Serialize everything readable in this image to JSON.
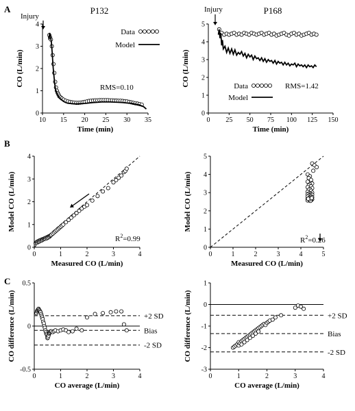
{
  "figure": {
    "panel_letters": [
      "A",
      "B",
      "C"
    ],
    "patients": [
      "P132",
      "P168"
    ]
  },
  "chart_data": [
    {
      "id": "A-left",
      "type": "line",
      "panel_letter": "A",
      "title": "P132",
      "xlabel": "Time (min)",
      "ylabel": "CO (L/min)",
      "xlim": [
        10,
        35
      ],
      "ylim": [
        0,
        4
      ],
      "xticks": [
        10,
        15,
        20,
        25,
        30,
        35
      ],
      "yticks": [
        0,
        1,
        2,
        3,
        4
      ],
      "grid": false,
      "legend": "top-right",
      "annotations": [
        {
          "text": "Injury",
          "x": 12,
          "y": 4
        },
        {
          "text": "RMS=0.10",
          "x": 27,
          "y": 1.3
        }
      ],
      "series": [
        {
          "name": "Data",
          "style": "markers",
          "x": [
            11.6,
            11.8,
            12.0,
            12.2,
            12.4,
            12.6,
            12.8,
            13.0,
            13.2,
            13.4,
            13.6,
            13.8,
            14.0,
            14.3,
            14.6,
            15.0,
            15.5,
            16.0,
            16.5,
            17.0,
            17.5,
            18.0,
            18.5,
            19.0,
            19.5,
            20.0,
            20.5,
            21.0,
            21.5,
            22.0,
            22.5,
            23.0,
            23.5,
            24.0,
            24.5,
            25.0,
            25.5,
            26.0,
            26.5,
            27.0,
            27.5,
            28.0,
            28.5,
            29.0,
            29.5,
            30.0,
            30.5,
            31.0,
            31.5,
            32.0,
            32.5,
            33.0,
            33.5
          ],
          "y": [
            3.5,
            3.4,
            3.3,
            3.0,
            2.6,
            2.2,
            1.8,
            1.4,
            1.15,
            1.0,
            0.9,
            0.82,
            0.75,
            0.7,
            0.65,
            0.6,
            0.55,
            0.52,
            0.5,
            0.48,
            0.47,
            0.46,
            0.46,
            0.47,
            0.48,
            0.5,
            0.52,
            0.54,
            0.55,
            0.56,
            0.57,
            0.57,
            0.58,
            0.58,
            0.58,
            0.58,
            0.58,
            0.57,
            0.57,
            0.56,
            0.56,
            0.55,
            0.55,
            0.54,
            0.53,
            0.52,
            0.5,
            0.48,
            0.46,
            0.44,
            0.42,
            0.4,
            0.38
          ]
        },
        {
          "name": "Model",
          "style": "line",
          "x": [
            11.5,
            11.7,
            11.9,
            12.1,
            12.3,
            12.5,
            12.7,
            12.9,
            13.1,
            13.3,
            13.5,
            13.8,
            14.0,
            14.5,
            15.0,
            15.5,
            16.0,
            17.0,
            18.0,
            19.0,
            20.0,
            21.0,
            22.0,
            23.0,
            24.0,
            25.0,
            26.0,
            27.0,
            28.0,
            29.0,
            30.0,
            31.0,
            32.0,
            33.0,
            34.0,
            34.6
          ],
          "y": [
            3.3,
            3.6,
            3.4,
            3.2,
            2.7,
            2.1,
            1.7,
            1.3,
            1.05,
            0.95,
            0.85,
            0.75,
            0.68,
            0.6,
            0.52,
            0.47,
            0.44,
            0.42,
            0.41,
            0.42,
            0.43,
            0.45,
            0.47,
            0.48,
            0.5,
            0.5,
            0.5,
            0.49,
            0.48,
            0.47,
            0.45,
            0.44,
            0.4,
            0.36,
            0.28,
            0.18
          ]
        }
      ]
    },
    {
      "id": "A-right",
      "type": "line",
      "panel_letter": "",
      "title": "P168",
      "xlabel": "Time (min)",
      "ylabel": "CO (L/min)",
      "xlim": [
        0,
        150
      ],
      "ylim": [
        0,
        5
      ],
      "xticks": [
        0,
        25,
        50,
        75,
        100,
        125,
        150
      ],
      "yticks": [
        0,
        1,
        2,
        3,
        4,
        5
      ],
      "grid": false,
      "legend": "center",
      "annotations": [
        {
          "text": "Injury",
          "x": 14,
          "y": 5
        },
        {
          "text": "RMS=1.42",
          "x": 97,
          "y": 2.1
        }
      ],
      "series": [
        {
          "name": "Data",
          "style": "markers",
          "x": [
            13,
            16,
            19,
            22,
            25,
            28,
            31,
            34,
            37,
            40,
            43,
            46,
            49,
            52,
            55,
            58,
            61,
            64,
            67,
            70,
            73,
            76,
            79,
            82,
            85,
            88,
            91,
            94,
            97,
            100,
            103,
            106,
            109,
            112,
            115,
            118,
            121,
            124,
            127,
            130
          ],
          "y": [
            4.7,
            4.5,
            4.4,
            4.45,
            4.4,
            4.45,
            4.5,
            4.4,
            4.45,
            4.4,
            4.5,
            4.45,
            4.4,
            4.5,
            4.45,
            4.4,
            4.45,
            4.5,
            4.4,
            4.45,
            4.5,
            4.4,
            4.45,
            4.35,
            4.4,
            4.45,
            4.5,
            4.4,
            4.35,
            4.45,
            4.5,
            4.4,
            4.45,
            4.35,
            4.4,
            4.45,
            4.5,
            4.4,
            4.45,
            4.4
          ]
        },
        {
          "name": "Model",
          "style": "line",
          "x": [
            12,
            13,
            14,
            15,
            16,
            17,
            18,
            20,
            22,
            24,
            26,
            28,
            30,
            32,
            34,
            36,
            38,
            40,
            42,
            44,
            46,
            48,
            50,
            52,
            54,
            56,
            58,
            60,
            62,
            64,
            66,
            68,
            70,
            72,
            74,
            76,
            78,
            80,
            82,
            84,
            86,
            88,
            90,
            92,
            94,
            96,
            98,
            100,
            102,
            104,
            106,
            108,
            110,
            112,
            114,
            116,
            118,
            120,
            122,
            124,
            126,
            128,
            130
          ],
          "y": [
            4.4,
            4.7,
            4.2,
            4.5,
            3.8,
            4.1,
            3.6,
            3.75,
            3.4,
            3.65,
            3.35,
            3.6,
            3.3,
            3.55,
            3.25,
            3.4,
            3.3,
            3.45,
            3.2,
            3.35,
            3.1,
            3.3,
            3.15,
            3.25,
            3.0,
            3.2,
            3.05,
            3.1,
            2.95,
            3.1,
            2.9,
            3.05,
            2.85,
            3.0,
            2.9,
            2.95,
            2.8,
            2.95,
            2.75,
            2.9,
            2.8,
            2.85,
            2.7,
            2.85,
            2.7,
            2.8,
            2.65,
            2.75,
            2.7,
            2.8,
            2.6,
            2.75,
            2.65,
            2.7,
            2.6,
            2.7,
            2.55,
            2.7,
            2.6,
            2.65,
            2.55,
            2.7,
            2.6
          ]
        }
      ]
    },
    {
      "id": "B-left",
      "type": "scatter",
      "panel_letter": "B",
      "title": "",
      "xlabel": "Measured CO (L/min)",
      "ylabel": "Model CO (L/min)",
      "xlim": [
        0,
        4
      ],
      "ylim": [
        0,
        4
      ],
      "xticks": [
        0,
        1,
        2,
        3,
        4
      ],
      "yticks": [
        0,
        1,
        2,
        3,
        4
      ],
      "grid": false,
      "identity_line": true,
      "annotations": [
        {
          "text": "R",
          "sup": "2",
          "rest": "=0.99"
        }
      ],
      "series": [
        {
          "name": "",
          "style": "markers",
          "x": [
            0.05,
            0.08,
            0.1,
            0.12,
            0.15,
            0.18,
            0.2,
            0.22,
            0.25,
            0.28,
            0.3,
            0.32,
            0.35,
            0.38,
            0.4,
            0.42,
            0.45,
            0.48,
            0.5,
            0.52,
            0.55,
            0.57,
            0.6,
            0.62,
            0.65,
            0.7,
            0.75,
            0.8,
            0.85,
            0.9,
            0.95,
            1.0,
            1.05,
            1.1,
            1.2,
            1.3,
            1.4,
            1.5,
            1.6,
            1.7,
            1.8,
            1.9,
            2.0,
            2.2,
            2.4,
            2.6,
            2.8,
            3.0,
            3.1,
            3.2,
            3.3,
            3.4,
            3.45,
            3.5
          ],
          "y": [
            0.18,
            0.22,
            0.2,
            0.25,
            0.27,
            0.25,
            0.3,
            0.28,
            0.32,
            0.3,
            0.35,
            0.33,
            0.37,
            0.36,
            0.4,
            0.38,
            0.42,
            0.4,
            0.45,
            0.43,
            0.48,
            0.46,
            0.5,
            0.52,
            0.55,
            0.6,
            0.65,
            0.7,
            0.75,
            0.8,
            0.85,
            0.9,
            0.95,
            1.0,
            1.1,
            1.2,
            1.3,
            1.4,
            1.5,
            1.6,
            1.7,
            1.78,
            1.85,
            2.05,
            2.25,
            2.45,
            2.6,
            2.85,
            2.95,
            3.05,
            3.15,
            3.3,
            3.35,
            3.45
          ]
        }
      ]
    },
    {
      "id": "B-right",
      "type": "scatter",
      "panel_letter": "",
      "title": "",
      "xlabel": "Measured CO (L/min)",
      "ylabel": "Model CO (L/min)",
      "xlim": [
        0,
        5
      ],
      "ylim": [
        0,
        5
      ],
      "xticks": [
        0,
        1,
        2,
        3,
        4,
        5
      ],
      "yticks": [
        0,
        1,
        2,
        3,
        4,
        5
      ],
      "grid": false,
      "identity_line": true,
      "annotations": [
        {
          "text": "R",
          "sup": "2",
          "rest": "=0.26"
        }
      ],
      "series": [
        {
          "name": "",
          "style": "markers",
          "x": [
            4.5,
            4.6,
            4.7,
            4.55,
            4.3,
            4.4,
            4.35,
            4.45,
            4.3,
            4.5,
            4.4,
            4.35,
            4.45,
            4.3,
            4.5,
            4.4,
            4.35,
            4.45,
            4.3,
            4.5,
            4.4,
            4.35,
            4.45,
            4.3,
            4.5,
            4.4,
            4.35,
            4.45,
            4.3,
            4.5,
            4.4,
            4.35,
            4.45,
            4.3,
            4.5,
            4.4,
            4.35,
            4.45,
            4.3,
            4.4,
            4.42,
            4.38,
            4.48,
            4.32
          ],
          "y": [
            4.6,
            4.5,
            4.4,
            4.2,
            4.0,
            3.9,
            3.8,
            3.7,
            3.6,
            3.5,
            3.45,
            3.4,
            3.35,
            3.3,
            3.25,
            3.2,
            3.15,
            3.1,
            3.05,
            3.0,
            2.98,
            2.95,
            2.92,
            2.9,
            2.88,
            2.85,
            2.83,
            2.8,
            2.78,
            2.75,
            2.73,
            2.7,
            2.68,
            2.65,
            2.63,
            2.6,
            2.6,
            2.58,
            2.57,
            2.56,
            2.55,
            2.62,
            2.7,
            2.66
          ]
        }
      ]
    },
    {
      "id": "C-left",
      "type": "scatter",
      "panel_letter": "C",
      "title": "",
      "xlabel": "CO average (L/min)",
      "ylabel": "CO difference (L/min)",
      "xlim": [
        0,
        4
      ],
      "ylim": [
        -0.5,
        0.5
      ],
      "ytick_format": "decimal",
      "xticks": [
        0,
        1,
        2,
        3,
        4
      ],
      "yticks": [
        -0.5,
        0,
        0.5
      ],
      "grid": false,
      "zero_line": true,
      "reference_lines": [
        {
          "label": "+2 SD",
          "y": 0.12
        },
        {
          "label": "Bias",
          "y": -0.05
        },
        {
          "label": "-2 SD",
          "y": -0.22
        }
      ],
      "series": [
        {
          "name": "",
          "style": "markers",
          "x": [
            0.08,
            0.1,
            0.12,
            0.14,
            0.16,
            0.18,
            0.2,
            0.22,
            0.24,
            0.26,
            0.28,
            0.3,
            0.32,
            0.34,
            0.36,
            0.38,
            0.4,
            0.42,
            0.44,
            0.46,
            0.48,
            0.5,
            0.5,
            0.52,
            0.54,
            0.56,
            0.58,
            0.6,
            0.62,
            0.65,
            0.7,
            0.75,
            0.8,
            0.9,
            1.0,
            1.1,
            1.2,
            1.3,
            1.45,
            1.6,
            1.8,
            2.0,
            2.3,
            2.6,
            2.9,
            3.1,
            3.3,
            3.4,
            3.5
          ],
          "y": [
            0.15,
            0.17,
            0.18,
            0.19,
            0.2,
            0.19,
            0.18,
            0.17,
            0.16,
            0.14,
            0.12,
            0.1,
            0.08,
            0.05,
            0.03,
            0.0,
            -0.02,
            -0.05,
            -0.07,
            -0.09,
            -0.1,
            -0.12,
            -0.14,
            -0.13,
            -0.11,
            -0.09,
            -0.08,
            -0.07,
            -0.06,
            -0.06,
            -0.07,
            -0.06,
            -0.05,
            -0.06,
            -0.05,
            -0.04,
            -0.05,
            -0.07,
            -0.06,
            -0.03,
            -0.05,
            0.1,
            0.14,
            0.15,
            0.16,
            0.17,
            0.17,
            0.02,
            -0.05
          ]
        }
      ]
    },
    {
      "id": "C-right",
      "type": "scatter",
      "panel_letter": "",
      "title": "",
      "xlabel": "CO average (L/min)",
      "ylabel": "CO difference (L/min)",
      "xlim": [
        0,
        4
      ],
      "ylim": [
        -3,
        1
      ],
      "xticks": [
        0,
        1,
        2,
        3,
        4
      ],
      "yticks": [
        -3,
        -2,
        -1,
        0,
        1
      ],
      "grid": false,
      "zero_line": true,
      "reference_lines": [
        {
          "label": "+2 SD",
          "y": -0.5
        },
        {
          "label": "Bias",
          "y": -1.35
        },
        {
          "label": "-2 SD",
          "y": -2.2
        }
      ],
      "series": [
        {
          "name": "",
          "style": "markers",
          "x": [
            0.8,
            0.85,
            0.9,
            0.95,
            1.0,
            1.0,
            1.05,
            1.1,
            1.1,
            1.15,
            1.2,
            1.2,
            1.25,
            1.3,
            1.3,
            1.35,
            1.4,
            1.4,
            1.45,
            1.5,
            1.5,
            1.55,
            1.6,
            1.6,
            1.65,
            1.7,
            1.7,
            1.75,
            1.8,
            1.85,
            1.9,
            1.95,
            2.0,
            2.05,
            2.1,
            2.2,
            2.3,
            2.5,
            3.0,
            3.1,
            3.2,
            3.3
          ],
          "y": [
            -2.0,
            -1.95,
            -1.9,
            -1.85,
            -1.9,
            -1.75,
            -1.8,
            -1.7,
            -1.85,
            -1.65,
            -1.6,
            -1.75,
            -1.55,
            -1.5,
            -1.65,
            -1.45,
            -1.4,
            -1.55,
            -1.35,
            -1.3,
            -1.45,
            -1.25,
            -1.2,
            -1.35,
            -1.15,
            -1.1,
            -1.25,
            -1.05,
            -1.0,
            -0.95,
            -0.9,
            -0.95,
            -0.85,
            -0.8,
            -0.75,
            -0.7,
            -0.6,
            -0.5,
            -0.15,
            -0.05,
            -0.1,
            -0.2
          ]
        }
      ]
    }
  ]
}
